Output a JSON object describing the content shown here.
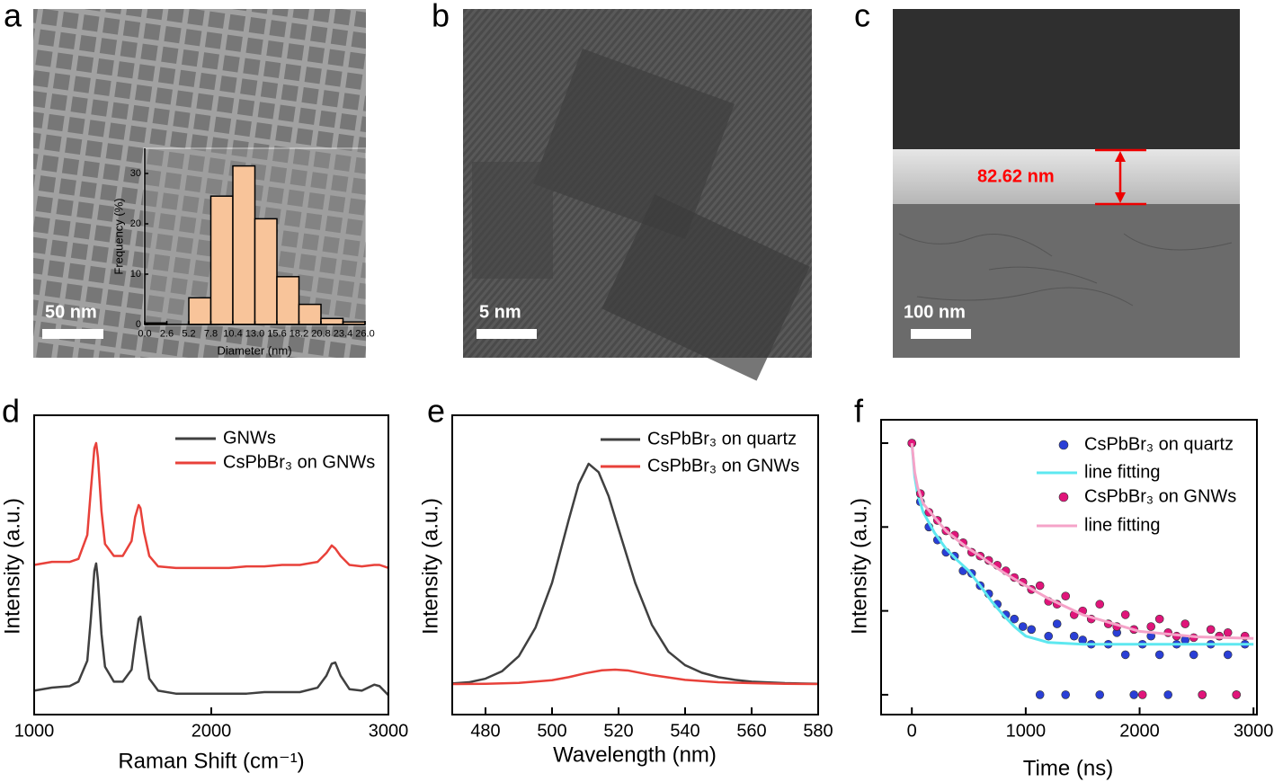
{
  "panel_labels": [
    "a",
    "b",
    "c",
    "d",
    "e",
    "f"
  ],
  "micrographs": [
    {
      "scale_bar": "50 nm"
    },
    {
      "scale_bar": "5 nm"
    },
    {
      "scale_bar": "100 nm",
      "annotation": "82.62 nm"
    }
  ],
  "chart_data": [
    {
      "type": "histogram",
      "xlabel": "Diameter (nm)",
      "ylabel": "Frequency (%)",
      "bins": [
        0,
        2.6,
        5.2,
        7.8,
        10.4,
        13,
        15.6,
        18.2,
        20.8,
        23.4,
        26
      ],
      "values": [
        0.3,
        0,
        5.3,
        25.5,
        31.5,
        21,
        9.5,
        4,
        1.2,
        0.5
      ],
      "color": "#f8c49a",
      "xlim": [
        0,
        26
      ],
      "ylim": [
        0,
        35
      ],
      "xticks": [
        {
          "value": 0,
          "label": "0.0"
        },
        2.6,
        5.2,
        7.8,
        10.4,
        {
          "value": 13,
          "label": "13.0"
        },
        15.6,
        18.2,
        20.8,
        23.4,
        {
          "value": 26,
          "label": "26.0"
        }
      ],
      "yticks": [
        0,
        10,
        20,
        30
      ]
    },
    {
      "type": "line",
      "xlabel": "Raman Shift (cm⁻¹)",
      "ylabel": "Intensity (a.u.)",
      "x": [
        1000,
        1100,
        1200,
        1250,
        1300,
        1320,
        1340,
        1350,
        1360,
        1380,
        1400,
        1450,
        1500,
        1550,
        1570,
        1590,
        1600,
        1620,
        1650,
        1700,
        1800,
        1900,
        2000,
        2100,
        2200,
        2300,
        2400,
        2500,
        2600,
        2650,
        2680,
        2700,
        2730,
        2780,
        2850,
        2920,
        2950,
        3000
      ],
      "series": [
        {
          "name": "GNWs",
          "color": "#404040",
          "values": [
            8,
            9,
            9.5,
            11,
            18,
            32,
            48,
            50.5,
            45,
            27,
            16,
            11,
            11,
            15,
            24,
            32,
            32.7,
            24,
            12,
            8,
            7,
            7,
            7,
            7,
            7,
            7.5,
            7.5,
            7.5,
            9,
            13,
            17,
            17.4,
            13,
            8.5,
            8,
            10,
            9.5,
            6.5
          ]
        },
        {
          "name": "CsPbBr₃ on GNWs",
          "color": "#e8413a",
          "values": [
            50,
            51,
            51,
            52,
            60,
            75,
            89,
            90.7,
            86,
            68,
            57,
            53,
            53,
            58,
            66,
            70,
            69,
            61,
            53,
            49.5,
            49,
            49,
            49,
            49,
            49.5,
            49.5,
            50,
            50,
            51,
            54,
            56.5,
            55.5,
            53,
            50,
            49.5,
            50,
            50,
            49
          ]
        }
      ],
      "xlim": [
        1000,
        3000
      ],
      "ylim": [
        0,
        100
      ],
      "xticks": [
        1000,
        2000,
        3000
      ]
    },
    {
      "type": "line",
      "xlabel": "Wavelength (nm)",
      "ylabel": "Intensity (a.u.)",
      "series": [
        {
          "name": "CsPbBr₃ on quartz",
          "color": "#404040",
          "x": [
            470,
            475,
            480,
            485,
            490,
            495,
            500,
            505,
            508,
            511,
            514,
            517,
            520,
            525,
            530,
            535,
            540,
            545,
            550,
            555,
            560,
            570,
            580
          ],
          "values": [
            10.4,
            10.8,
            12,
            14.5,
            19.5,
            29,
            44,
            65,
            77,
            83.8,
            81,
            73,
            62,
            44,
            30,
            21,
            16.5,
            14,
            12.5,
            11.6,
            11,
            10.5,
            10.3
          ]
        },
        {
          "name": "CsPbBr₃ on GNWs",
          "color": "#e8413a",
          "x": [
            470,
            480,
            490,
            500,
            505,
            510,
            515,
            519,
            523,
            530,
            540,
            550,
            560,
            570,
            580
          ],
          "values": [
            10.2,
            10.3,
            10.6,
            11.5,
            12.5,
            13.8,
            14.8,
            15,
            14.7,
            13.2,
            11.6,
            10.8,
            10.5,
            10.3,
            10.2
          ]
        }
      ],
      "xlim": [
        470,
        580
      ],
      "ylim": [
        0,
        100
      ],
      "xticks": [
        480,
        500,
        520,
        540,
        560,
        580
      ]
    },
    {
      "type": "scatter",
      "xlabel": "Time (ns)",
      "ylabel": "Intensity (a.u.)",
      "log_y": true,
      "show_ytick_labels": false,
      "series": [
        {
          "name": "CsPbBr₃ on quartz",
          "color": "#2a3fd6",
          "style": "marker",
          "x": [
            0,
            75,
            150,
            225,
            300,
            375,
            450,
            525,
            600,
            675,
            750,
            825,
            900,
            975,
            1050,
            1125,
            1200,
            1275,
            1350,
            1425,
            1500,
            1575,
            1650,
            1725,
            1800,
            1875,
            1950,
            2025,
            2100,
            2175,
            2250,
            2325,
            2400,
            2475,
            2550,
            2625,
            2700,
            2775,
            2850,
            2925
          ],
          "values": [
            1,
            0.2,
            0.1,
            0.07,
            0.05,
            0.045,
            0.03,
            0.028,
            0.02,
            0.016,
            0.012,
            0.009,
            0.008,
            0.0065,
            0.006,
            0.001,
            0.005,
            0.007,
            0.001,
            0.005,
            0.0045,
            0.004,
            0.001,
            0.004,
            0.0055,
            0.003,
            0.001,
            0.004,
            0.005,
            0.003,
            0.001,
            0.004,
            0.0045,
            0.003,
            0.001,
            0.004,
            0.005,
            0.003,
            0.001,
            0.004
          ]
        },
        {
          "name": "line fitting",
          "color": "#5ee8f0",
          "style": "line",
          "x": [
            0,
            25,
            50,
            100,
            200,
            300,
            400,
            500,
            600,
            700,
            800,
            900,
            1000,
            1200,
            1500,
            2000,
            2500,
            3000
          ],
          "values": [
            1,
            0.4,
            0.25,
            0.15,
            0.085,
            0.055,
            0.04,
            0.03,
            0.02,
            0.013,
            0.009,
            0.0065,
            0.005,
            0.0042,
            0.004,
            0.004,
            0.004,
            0.004
          ]
        },
        {
          "name": "CsPbBr₃ on GNWs",
          "color": "#e0157a",
          "style": "marker",
          "x": [
            0,
            75,
            150,
            225,
            300,
            375,
            450,
            525,
            600,
            675,
            750,
            825,
            900,
            975,
            1050,
            1125,
            1200,
            1275,
            1350,
            1425,
            1500,
            1575,
            1650,
            1725,
            1800,
            1875,
            1950,
            2025,
            2100,
            2175,
            2250,
            2325,
            2400,
            2475,
            2550,
            2625,
            2700,
            2775,
            2850,
            2925
          ],
          "values": [
            1,
            0.25,
            0.15,
            0.12,
            0.09,
            0.08,
            0.065,
            0.05,
            0.045,
            0.04,
            0.035,
            0.03,
            0.025,
            0.022,
            0.018,
            0.02,
            0.013,
            0.012,
            0.015,
            0.009,
            0.01,
            0.008,
            0.012,
            0.007,
            0.0065,
            0.009,
            0.006,
            0.001,
            0.0065,
            0.008,
            0.0055,
            0.005,
            0.007,
            0.0048,
            0.001,
            0.006,
            0.005,
            0.0055,
            0.001,
            0.005
          ]
        },
        {
          "name": "line fitting",
          "color": "#f5a3c8",
          "style": "line",
          "x": [
            0,
            25,
            50,
            100,
            200,
            300,
            400,
            500,
            600,
            700,
            800,
            900,
            1000,
            1200,
            1500,
            2000,
            2500,
            3000
          ],
          "values": [
            1,
            0.45,
            0.3,
            0.19,
            0.13,
            0.09,
            0.07,
            0.055,
            0.045,
            0.036,
            0.029,
            0.024,
            0.02,
            0.014,
            0.009,
            0.0057,
            0.0049,
            0.0047
          ]
        }
      ],
      "xlim": [
        -270,
        3030
      ],
      "ylim": [
        0.00058,
        1.9
      ],
      "xticks": [
        0,
        1000,
        2000,
        3000
      ],
      "yticks": [
        1,
        0.1,
        0.01,
        0.001
      ]
    }
  ]
}
